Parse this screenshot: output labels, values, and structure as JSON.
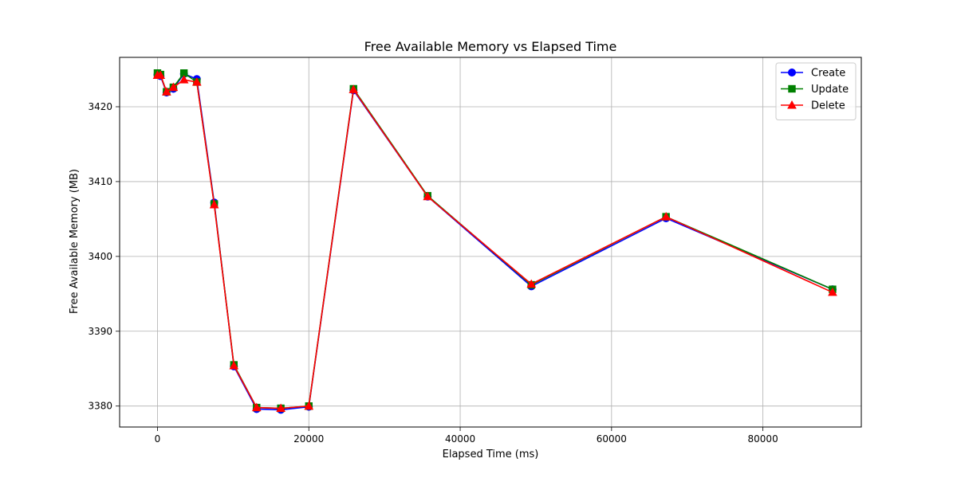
{
  "chart_data": {
    "type": "line",
    "title": "Free Available Memory vs Elapsed Time",
    "xlabel": "Elapsed Time (ms)",
    "ylabel": "Free Available Memory (MB)",
    "xlim": [
      -5000,
      93000
    ],
    "ylim": [
      3377.2,
      3426.6
    ],
    "xticks": [
      0,
      20000,
      40000,
      60000,
      80000
    ],
    "yticks": [
      3380,
      3390,
      3400,
      3410,
      3420
    ],
    "grid": true,
    "legend_position": "top-right",
    "series": [
      {
        "name": "Create",
        "color": "#0000ff",
        "marker": "circle",
        "points": [
          [
            0,
            3424.3
          ],
          [
            400,
            3424.1
          ],
          [
            1200,
            3421.9
          ],
          [
            2100,
            3422.4
          ],
          [
            3500,
            3424.4
          ],
          [
            5200,
            3423.7
          ],
          [
            7500,
            3407.2
          ],
          [
            10100,
            3385.3
          ],
          [
            13100,
            3379.6
          ],
          [
            16300,
            3379.5
          ],
          [
            20000,
            3379.9
          ],
          [
            25900,
            3422.2
          ],
          [
            35700,
            3408.0
          ],
          [
            49400,
            3396.0
          ],
          [
            67200,
            3405.1
          ],
          [
            89200,
            3395.6
          ]
        ]
      },
      {
        "name": "Update",
        "color": "#008000",
        "marker": "square",
        "points": [
          [
            0,
            3424.5
          ],
          [
            400,
            3424.3
          ],
          [
            1200,
            3422.0
          ],
          [
            2100,
            3422.6
          ],
          [
            3500,
            3424.5
          ],
          [
            5200,
            3423.3
          ],
          [
            7500,
            3407.0
          ],
          [
            10100,
            3385.5
          ],
          [
            13100,
            3379.8
          ],
          [
            16300,
            3379.7
          ],
          [
            20000,
            3380.0
          ],
          [
            25900,
            3422.4
          ],
          [
            35700,
            3408.1
          ],
          [
            49400,
            3396.2
          ],
          [
            67200,
            3405.3
          ],
          [
            89200,
            3395.6
          ]
        ]
      },
      {
        "name": "Delete",
        "color": "#ff0000",
        "marker": "triangle",
        "points": [
          [
            0,
            3424.2
          ],
          [
            400,
            3424.2
          ],
          [
            1200,
            3422.0
          ],
          [
            2100,
            3422.6
          ],
          [
            3500,
            3423.6
          ],
          [
            5200,
            3423.3
          ],
          [
            7500,
            3406.9
          ],
          [
            10100,
            3385.4
          ],
          [
            13100,
            3379.8
          ],
          [
            16300,
            3379.7
          ],
          [
            20000,
            3380.0
          ],
          [
            25900,
            3422.3
          ],
          [
            35700,
            3408.0
          ],
          [
            49400,
            3396.3
          ],
          [
            67200,
            3405.3
          ],
          [
            89200,
            3395.2
          ]
        ]
      }
    ]
  }
}
